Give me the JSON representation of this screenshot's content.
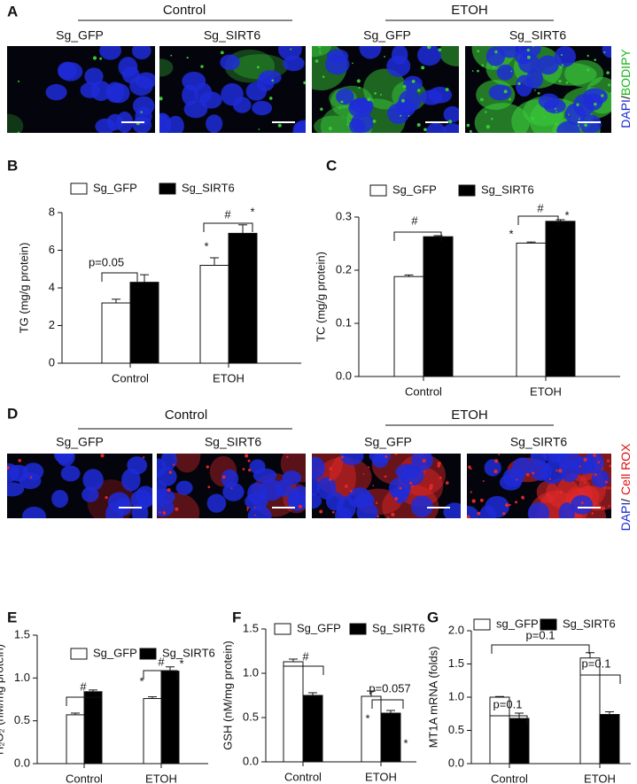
{
  "figure": {
    "panel_a": {
      "letter": "A",
      "groups": [
        "Control",
        "ETOH"
      ],
      "columns": [
        "Sg_GFP",
        "Sg_SIRT6",
        "Sg_GFP",
        "Sg_SIRT6"
      ],
      "stain": [
        "DAPI",
        "/",
        "BODIPY"
      ]
    },
    "panel_d": {
      "letter": "D",
      "groups": [
        "Control",
        "ETOH"
      ],
      "columns": [
        "Sg_GFP",
        "Sg_SIRT6",
        "Sg_GFP",
        "Sg_SIRT6"
      ],
      "stain": [
        "DAPI",
        "/ ",
        "Cell ROX"
      ]
    }
  },
  "chart_data": [
    {
      "type": "bar",
      "panel": "B",
      "ylabel": "TG (mg/g protein)",
      "categories": [
        "Control",
        "ETOH"
      ],
      "series": [
        {
          "name": "Sg_GFP",
          "color": "#ffffff",
          "values": [
            3.2,
            5.2
          ],
          "errors": [
            0.2,
            0.4
          ]
        },
        {
          "name": "Sg_SIRT6",
          "color": "#000000",
          "values": [
            4.3,
            6.9
          ],
          "errors": [
            0.4,
            0.45
          ]
        }
      ],
      "ylim": [
        0,
        8
      ],
      "yticks": [
        0,
        2,
        4,
        6,
        8
      ],
      "annotations": [
        "p=0.05",
        "#",
        "*",
        "*"
      ]
    },
    {
      "type": "bar",
      "panel": "C",
      "ylabel": "TC (mg/g protein)",
      "categories": [
        "Control",
        "ETOH"
      ],
      "series": [
        {
          "name": "Sg_GFP",
          "color": "#ffffff",
          "values": [
            0.188,
            0.251
          ],
          "errors": [
            0.003,
            0.002
          ]
        },
        {
          "name": "Sg_SIRT6",
          "color": "#000000",
          "values": [
            0.263,
            0.292
          ],
          "errors": [
            0.002,
            0.003
          ]
        }
      ],
      "ylim": [
        0,
        0.3
      ],
      "yticks": [
        {
          "value": 0,
          "label": "0.0"
        },
        0.1,
        0.2,
        0.3
      ],
      "annotations": [
        "#",
        "#",
        "*",
        "*"
      ]
    },
    {
      "type": "bar",
      "panel": "E",
      "ylabel": "H₂O₂ (nM/mg protein)",
      "categories": [
        "Control",
        "ETOH"
      ],
      "series": [
        {
          "name": "Sg_GFP",
          "color": "#ffffff",
          "values": [
            0.57,
            0.76
          ],
          "errors": [
            0.02,
            0.02
          ]
        },
        {
          "name": "Sg_SIRT6",
          "color": "#000000",
          "values": [
            0.84,
            1.08
          ],
          "errors": [
            0.02,
            0.05
          ]
        }
      ],
      "ylim": [
        0,
        1.5
      ],
      "yticks": [
        {
          "value": 0,
          "label": "0.0"
        },
        0.5,
        {
          "value": 1,
          "label": "1.0"
        },
        1.5
      ],
      "annotations": [
        "#",
        "#",
        "*",
        "*"
      ]
    },
    {
      "type": "bar",
      "panel": "F",
      "ylabel": "GSH (nM/mg protein)",
      "categories": [
        "Control",
        "ETOH"
      ],
      "series": [
        {
          "name": "Sg_GFP",
          "color": "#ffffff",
          "values": [
            1.13,
            0.74
          ],
          "errors": [
            0.03,
            0.06
          ]
        },
        {
          "name": "Sg_SIRT6",
          "color": "#000000",
          "values": [
            0.75,
            0.55
          ],
          "errors": [
            0.03,
            0.03
          ]
        }
      ],
      "ylim": [
        0,
        1.5
      ],
      "yticks": [
        {
          "value": 0,
          "label": "0.0"
        },
        0.5,
        {
          "value": 1,
          "label": "1.0"
        },
        1.5
      ],
      "annotations": [
        "#",
        "p=0.057",
        "*",
        "*"
      ]
    },
    {
      "type": "bar",
      "panel": "G",
      "ylabel": "MT1A mRNA (folds)",
      "categories": [
        "Control",
        "ETOH"
      ],
      "series": [
        {
          "name": "sg_GFP",
          "color": "#ffffff",
          "values": [
            1.0,
            1.59
          ],
          "errors": [
            0.01,
            0.08
          ]
        },
        {
          "name": "Sg_SIRT6",
          "color": "#000000",
          "values": [
            0.68,
            0.74
          ],
          "errors": [
            0.08,
            0.04
          ]
        }
      ],
      "ylim": [
        0,
        2
      ],
      "yticks": [
        {
          "value": 0,
          "label": "0.0"
        },
        0.5,
        {
          "value": 1,
          "label": "1.0"
        },
        1.5,
        {
          "value": 2,
          "label": "2.0"
        }
      ],
      "annotations": [
        "p=0.1",
        "p=0.1",
        "p=0.1"
      ]
    }
  ]
}
